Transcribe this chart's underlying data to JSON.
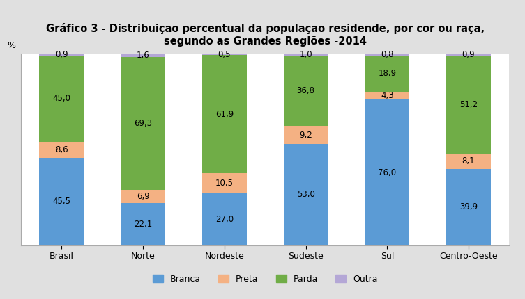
{
  "title": "Gráfico 3 - Distribuição percentual da população residende, por cor ou raça,\nsegundo as Grandes Regiões -2014",
  "ylabel": "%",
  "categories": [
    "Brasil",
    "Norte",
    "Nordeste",
    "Sudeste",
    "Sul",
    "Centro-Oeste"
  ],
  "series": {
    "Branca": [
      45.5,
      22.1,
      27.0,
      53.0,
      76.0,
      39.9
    ],
    "Preta": [
      8.6,
      6.9,
      10.5,
      9.2,
      4.3,
      8.1
    ],
    "Parda": [
      45.0,
      69.3,
      61.9,
      36.8,
      18.9,
      51.2
    ],
    "Outra": [
      0.9,
      1.6,
      0.5,
      1.0,
      0.8,
      0.9
    ]
  },
  "colors": {
    "Branca": "#5B9BD5",
    "Preta": "#F4B183",
    "Parda": "#70AD47",
    "Outra": "#B4A7D6"
  },
  "bar_width": 0.55,
  "ylim": [
    0,
    100
  ],
  "background_color": "#E0E0E0",
  "plot_background": "#FFFFFF",
  "title_fontsize": 10.5,
  "label_fontsize": 8.5,
  "legend_fontsize": 9,
  "tick_fontsize": 9,
  "series_order": [
    "Branca",
    "Preta",
    "Parda",
    "Outra"
  ]
}
